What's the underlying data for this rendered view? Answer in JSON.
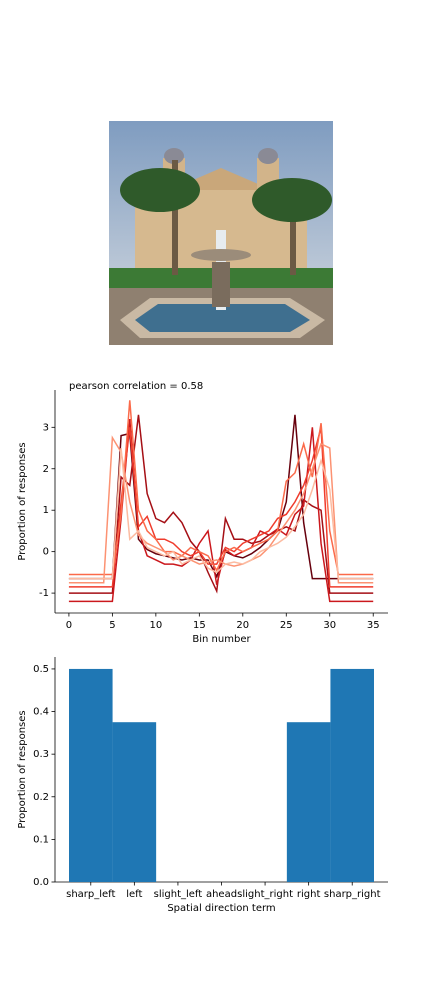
{
  "chart_data": [
    {
      "type": "line",
      "title": "pearson correlation = 0.58",
      "xlabel": "Bin number",
      "ylabel": "Proportion of responses",
      "x": [
        0,
        1,
        2,
        3,
        4,
        5,
        6,
        7,
        8,
        9,
        10,
        11,
        12,
        13,
        14,
        15,
        16,
        17,
        18,
        19,
        20,
        21,
        22,
        23,
        24,
        25,
        26,
        27,
        28,
        29,
        30,
        31,
        32,
        33,
        34,
        35
      ],
      "xlim": [
        -1.6,
        36.7
      ],
      "ylim": [
        -1.48,
        3.9
      ],
      "xticks": [
        0,
        5,
        10,
        15,
        20,
        25,
        30,
        35
      ],
      "yticks": [
        -1,
        0,
        1,
        2,
        3
      ],
      "series": [
        {
          "color": "#67000d",
          "values": [
            -0.65,
            -0.65,
            -0.65,
            -0.65,
            -0.65,
            -0.65,
            2.8,
            2.85,
            0.3,
            0.05,
            -0.05,
            -0.1,
            -0.15,
            -0.2,
            -0.15,
            -0.2,
            -0.2,
            -0.6,
            0.0,
            -0.1,
            -0.15,
            -0.05,
            0.1,
            0.3,
            0.5,
            1.2,
            3.3,
            0.7,
            -0.65,
            -0.65,
            -0.65,
            -0.65,
            -0.65,
            -0.65,
            -0.65,
            -0.65
          ]
        },
        {
          "color": "#a50f15",
          "values": [
            -1.0,
            -1.0,
            -1.0,
            -1.0,
            -1.0,
            -1.0,
            1.8,
            1.6,
            3.3,
            1.4,
            0.8,
            0.7,
            0.95,
            0.7,
            0.25,
            0.0,
            -0.5,
            -0.95,
            0.8,
            0.3,
            0.3,
            0.2,
            0.25,
            0.4,
            0.5,
            0.6,
            0.5,
            1.25,
            1.1,
            1.0,
            -1.0,
            -1.0,
            -1.0,
            -1.0,
            -1.0,
            -1.0
          ]
        },
        {
          "color": "#cb181d",
          "values": [
            -1.2,
            -1.2,
            -1.2,
            -1.2,
            -1.2,
            -1.2,
            0.8,
            3.2,
            0.5,
            -0.1,
            -0.2,
            -0.3,
            -0.3,
            -0.35,
            -0.2,
            0.2,
            0.5,
            -0.8,
            0.05,
            -0.1,
            0.0,
            0.1,
            0.5,
            0.4,
            0.55,
            0.4,
            0.9,
            1.1,
            3.0,
            0.2,
            -1.2,
            -1.2,
            -1.2,
            -1.2,
            -1.2,
            -1.2
          ]
        },
        {
          "color": "#ef3b2c",
          "values": [
            -0.85,
            -0.85,
            -0.85,
            -0.85,
            -0.85,
            -0.85,
            1.2,
            3.0,
            0.6,
            0.85,
            0.3,
            0.3,
            0.2,
            0.0,
            -0.1,
            0.0,
            -0.3,
            -0.3,
            0.1,
            0.0,
            0.2,
            0.3,
            0.4,
            0.5,
            0.8,
            0.9,
            1.2,
            1.6,
            2.2,
            3.0,
            -0.85,
            -0.85,
            -0.85,
            -0.85,
            -0.85,
            -0.85
          ]
        },
        {
          "color": "#fb6a4a",
          "values": [
            -0.55,
            -0.55,
            -0.55,
            -0.55,
            -0.55,
            -0.55,
            0.9,
            3.65,
            1.0,
            0.5,
            0.3,
            0.0,
            0.0,
            -0.1,
            0.1,
            0.0,
            -0.1,
            -0.45,
            0.0,
            0.1,
            0.0,
            0.1,
            0.2,
            0.3,
            0.5,
            1.7,
            1.9,
            2.6,
            1.8,
            3.1,
            0.5,
            -0.55,
            -0.55,
            -0.55,
            -0.55,
            -0.55
          ]
        },
        {
          "color": "#fc9272",
          "values": [
            -0.75,
            -0.75,
            -0.75,
            -0.75,
            -0.75,
            2.75,
            2.4,
            1.2,
            0.4,
            0.2,
            0.1,
            0.0,
            -0.2,
            -0.1,
            -0.2,
            -0.3,
            -0.25,
            -0.2,
            -0.3,
            -0.35,
            -0.3,
            -0.2,
            -0.1,
            0.1,
            0.4,
            0.7,
            1.0,
            1.4,
            2.0,
            2.6,
            2.5,
            -0.75,
            -0.75,
            -0.75,
            -0.75,
            -0.75
          ]
        },
        {
          "color": "#fcbba1",
          "values": [
            -0.65,
            -0.65,
            -0.65,
            -0.65,
            -0.65,
            -0.65,
            2.5,
            0.3,
            0.5,
            0.1,
            0.0,
            -0.1,
            0.0,
            -0.3,
            -0.2,
            -0.1,
            -0.4,
            -0.5,
            -0.3,
            -0.25,
            -0.3,
            -0.2,
            0.0,
            0.1,
            0.2,
            0.35,
            0.6,
            0.9,
            1.5,
            2.2,
            1.5,
            -0.65,
            -0.65,
            -0.65,
            -0.65,
            -0.65
          ]
        }
      ]
    },
    {
      "type": "bar",
      "xlabel": "Spatial direction term",
      "ylabel": "Proportion of responses",
      "categories": [
        "sharp_left",
        "left",
        "slight_left",
        "ahead",
        "slight_right",
        "right",
        "sharp_right"
      ],
      "values": [
        0.5,
        0.375,
        0,
        0,
        0,
        0.375,
        0.5
      ],
      "color": "#1f77b4",
      "ylim": [
        0,
        0.528
      ],
      "yticks": [
        {
          "value": 0,
          "label": "0.0"
        },
        {
          "value": 0.1,
          "label": "0.1"
        },
        {
          "value": 0.2,
          "label": "0.2"
        },
        {
          "value": 0.3,
          "label": "0.3"
        },
        {
          "value": 0.4,
          "label": "0.4"
        },
        {
          "value": 0.5,
          "label": "0.5"
        }
      ]
    }
  ]
}
